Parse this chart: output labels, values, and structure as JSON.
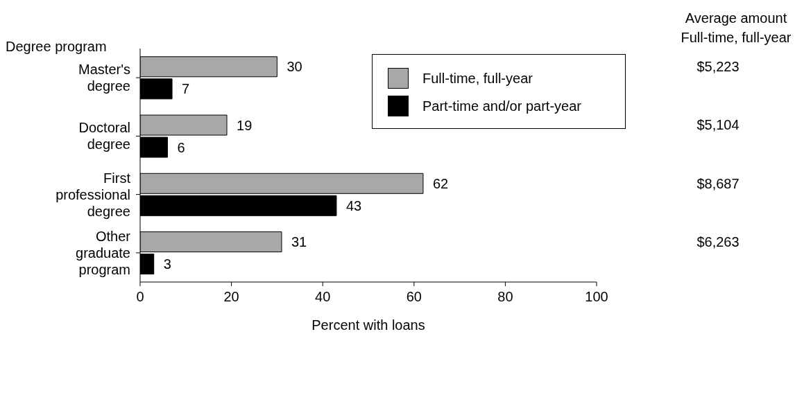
{
  "chart_data": {
    "type": "bar",
    "orientation": "horizontal",
    "ylabel": "Degree program",
    "xlabel": "Percent with loans",
    "categories": [
      "Master's degree",
      "Doctoral degree",
      "First professional degree",
      "Other graduate program"
    ],
    "series": [
      {
        "name": "Full-time, full-year",
        "color": "#a8a8a8",
        "values": [
          30,
          19,
          62,
          31
        ]
      },
      {
        "name": "Part-time and/or part-year",
        "color": "#000000",
        "values": [
          7,
          6,
          43,
          3
        ]
      }
    ],
    "xlim": [
      0,
      100
    ],
    "xticks": [
      0,
      20,
      40,
      60,
      80,
      100
    ],
    "grid": false,
    "legend": "top right",
    "data_labels": true,
    "annotations": [
      "Average amount Full-time, full-year",
      "$5,223",
      "$5,104",
      "$8,687",
      "$6,263"
    ]
  }
}
